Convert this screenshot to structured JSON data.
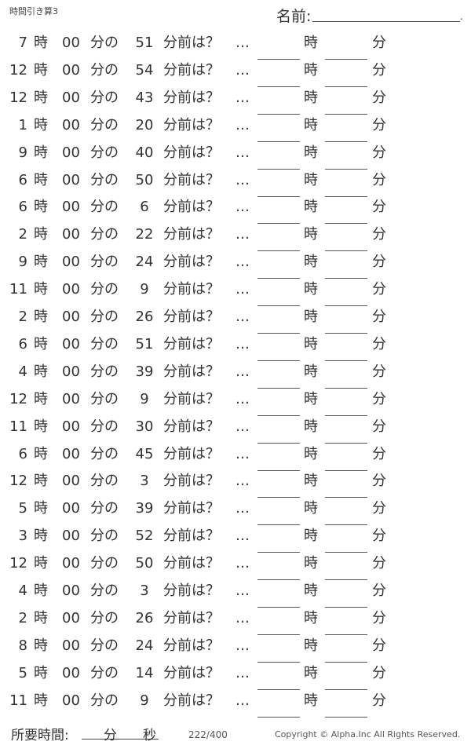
{
  "header": {
    "title": "時間引き算3",
    "name_label": "名前:",
    "name_end": "."
  },
  "labels": {
    "hour": "時",
    "zero": "00",
    "min_of": "分の",
    "before": "分前は？",
    "dots": "…",
    "ans_hour": "時",
    "ans_min": "分"
  },
  "rows": [
    {
      "h": "7",
      "m": "51"
    },
    {
      "h": "12",
      "m": "54"
    },
    {
      "h": "12",
      "m": "43"
    },
    {
      "h": "1",
      "m": "20"
    },
    {
      "h": "9",
      "m": "40"
    },
    {
      "h": "6",
      "m": "50"
    },
    {
      "h": "6",
      "m": "6"
    },
    {
      "h": "2",
      "m": "22"
    },
    {
      "h": "9",
      "m": "24"
    },
    {
      "h": "11",
      "m": "9"
    },
    {
      "h": "2",
      "m": "26"
    },
    {
      "h": "6",
      "m": "51"
    },
    {
      "h": "4",
      "m": "39"
    },
    {
      "h": "12",
      "m": "9"
    },
    {
      "h": "11",
      "m": "30"
    },
    {
      "h": "6",
      "m": "45"
    },
    {
      "h": "12",
      "m": "3"
    },
    {
      "h": "5",
      "m": "39"
    },
    {
      "h": "3",
      "m": "52"
    },
    {
      "h": "12",
      "m": "50"
    },
    {
      "h": "4",
      "m": "3"
    },
    {
      "h": "2",
      "m": "26"
    },
    {
      "h": "8",
      "m": "24"
    },
    {
      "h": "5",
      "m": "14"
    },
    {
      "h": "11",
      "m": "9"
    }
  ],
  "footer": {
    "time_label": "所要時間:",
    "min": "分",
    "sec": "秒",
    "page": "222/400",
    "copyright": "Copyright ©  Alpha.Inc All Rights Reserved."
  }
}
